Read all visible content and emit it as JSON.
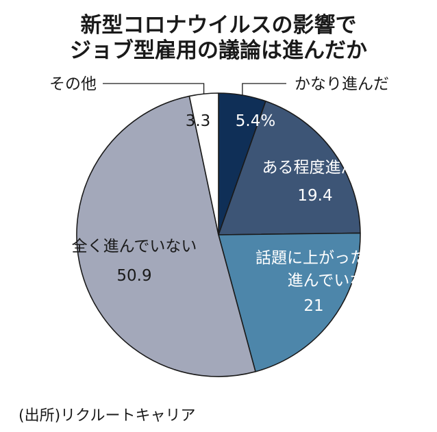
{
  "chart_data": {
    "type": "pie",
    "title": [
      "新型コロナウイルスの影響で",
      "ジョブ型雇用の議論は進んだか"
    ],
    "slices": [
      {
        "name": "かなり進んだ",
        "value": 5.4,
        "value_label": "5.4%",
        "color": "#0f2f57",
        "text_color": "#ffffff"
      },
      {
        "name": "ある程度進んだ",
        "value": 19.4,
        "value_label": "19.4",
        "color": "#3d5576",
        "text_color": "#ffffff"
      },
      {
        "name": "話題に上がった程度で\n進んでいない",
        "value": 21,
        "value_label": "21",
        "color": "#4d86aa",
        "text_color": "#ffffff"
      },
      {
        "name": "全く進んでいない",
        "value": 50.9,
        "value_label": "50.9",
        "color": "#a3a8ba",
        "text_color": "#1a1a1a"
      },
      {
        "name": "その他",
        "value": 3.3,
        "value_label": "3.3",
        "color": "#ffffff",
        "text_color": "#1a1a1a"
      }
    ],
    "start_angle_deg": 0,
    "direction": "clockwise",
    "legend": "none",
    "source": "(出所)リクルートキャリア"
  }
}
